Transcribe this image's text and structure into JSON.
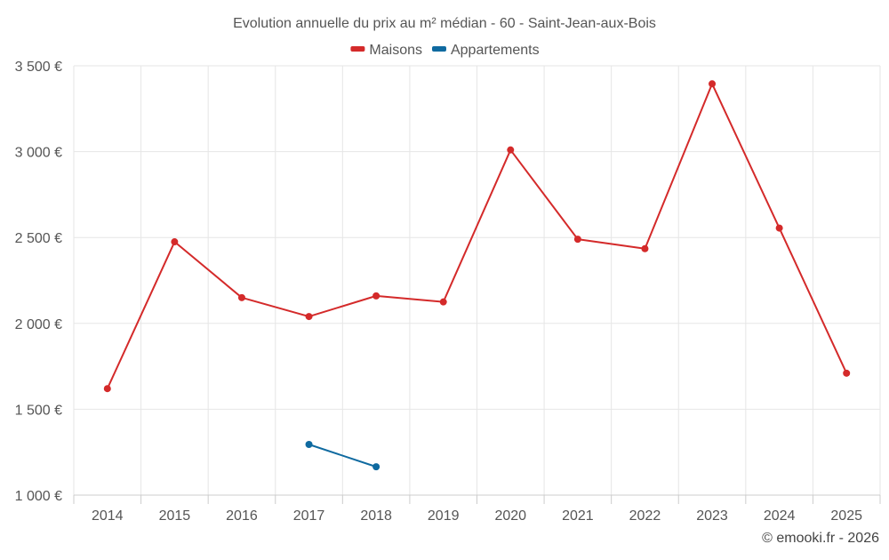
{
  "chart_data": {
    "type": "line",
    "title": "Evolution annuelle du prix au m² médian - 60 - Saint-Jean-aux-Bois",
    "categories": [
      "2014",
      "2015",
      "2016",
      "2017",
      "2018",
      "2019",
      "2020",
      "2021",
      "2022",
      "2023",
      "2024",
      "2025"
    ],
    "ylim": [
      1000,
      3500
    ],
    "yticks": [
      1000,
      1500,
      2000,
      2500,
      3000,
      3500
    ],
    "ytick_labels": [
      "1 000 €",
      "1 500 €",
      "2 000 €",
      "2 500 €",
      "3 000 €",
      "3 500 €"
    ],
    "grid": true,
    "legend_position": "top-center",
    "series": [
      {
        "name": "Maisons",
        "color": "#d42a2a",
        "values": [
          1620,
          2475,
          2150,
          2040,
          2160,
          2125,
          3010,
          2490,
          2435,
          3395,
          2555,
          1710
        ]
      },
      {
        "name": "Appartements",
        "color": "#0f6aa0",
        "values": [
          null,
          null,
          null,
          1295,
          1165,
          null,
          null,
          null,
          null,
          null,
          null,
          null
        ]
      }
    ]
  },
  "credit": "© emooki.fr - 2026"
}
